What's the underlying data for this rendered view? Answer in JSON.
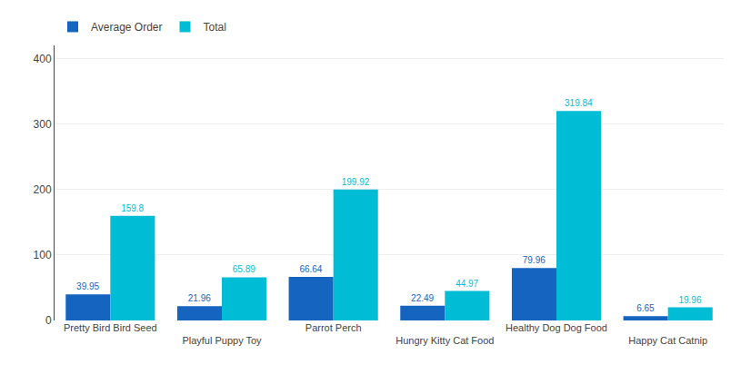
{
  "chart_data": {
    "type": "bar",
    "categories": [
      "Pretty Bird Bird Seed",
      "Playful Puppy Toy",
      "Parrot Perch",
      "Hungry Kitty Cat Food",
      "Healthy Dog Dog Food",
      "Happy Cat Catnip"
    ],
    "series": [
      {
        "name": "Average Order",
        "color": "#1565C0",
        "values": [
          39.95,
          21.96,
          66.64,
          22.49,
          79.96,
          6.65
        ]
      },
      {
        "name": "Total",
        "color": "#00BCD4",
        "values": [
          159.8,
          65.89,
          199.92,
          44.97,
          319.84,
          19.96
        ]
      }
    ],
    "ylim": [
      0,
      420
    ],
    "yticks": [
      0,
      100,
      200,
      300,
      400
    ],
    "grid": true,
    "legend": "top left",
    "data_labels": true
  }
}
